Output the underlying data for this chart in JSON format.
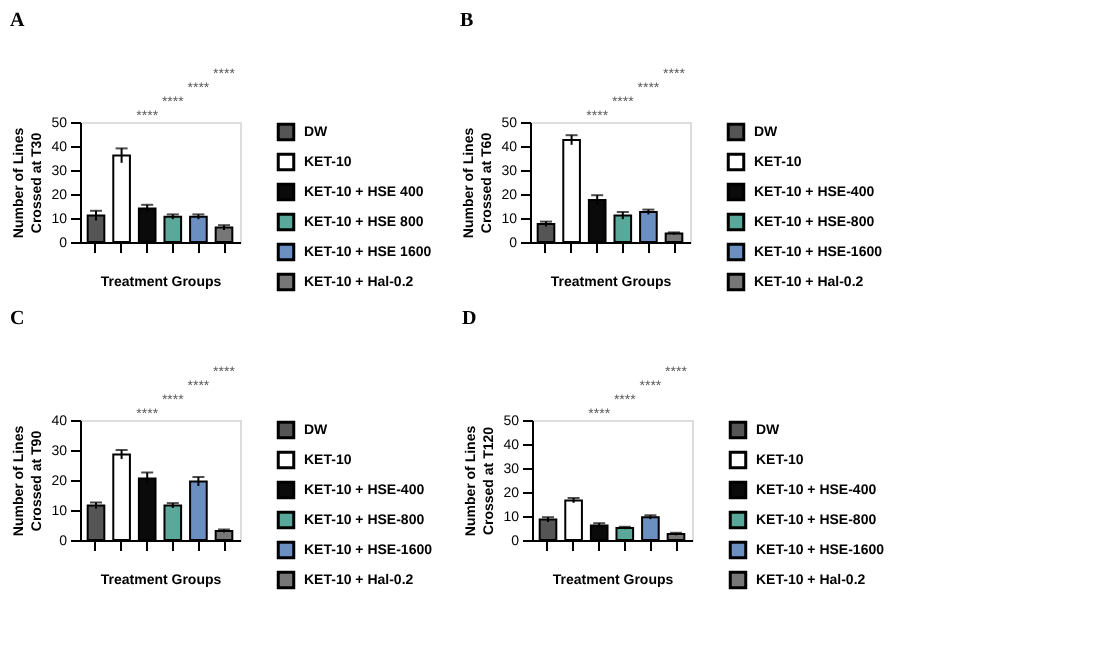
{
  "chart_data": [
    {
      "type": "bar",
      "title": "A",
      "xlabel": "Treatment Groups",
      "ylabel": "Number of Lines\nCrossed at T30",
      "categories": [
        null,
        null,
        null,
        null,
        null,
        null
      ],
      "series": [
        {
          "name": "DW",
          "color": "#555555",
          "values": [
            11,
            null,
            null,
            null,
            null,
            null
          ],
          "errors": [
            2,
            null,
            null,
            null,
            null,
            null
          ]
        },
        {
          "name": "KET-10",
          "color": "#ffffff",
          "values": [
            null,
            36,
            null,
            null,
            null,
            null
          ],
          "errors": [
            null,
            3,
            null,
            null,
            null,
            null
          ]
        },
        {
          "name": "KET-10 + HSE 400",
          "color": "#0a0a0a",
          "values": [
            null,
            null,
            14,
            null,
            null,
            null
          ],
          "errors": [
            null,
            null,
            1.5,
            null,
            null,
            null
          ]
        },
        {
          "name": "KET-10 + HSE 800",
          "color": "#5aa89a",
          "values": [
            null,
            null,
            null,
            10.5,
            null,
            null
          ],
          "errors": [
            null,
            null,
            null,
            1,
            null,
            null
          ]
        },
        {
          "name": "KET-10 + HSE 1600",
          "color": "#6a8fc0",
          "values": [
            null,
            null,
            null,
            null,
            10.5,
            null
          ],
          "errors": [
            null,
            null,
            null,
            null,
            1,
            null
          ]
        },
        {
          "name": "KET-10 + Hal-0.2",
          "color": "#777777",
          "values": [
            null,
            null,
            null,
            null,
            null,
            6
          ],
          "errors": [
            null,
            null,
            null,
            null,
            null,
            1
          ]
        }
      ],
      "ylim": [
        0,
        50
      ],
      "yticks": [
        0,
        10,
        20,
        30,
        40,
        50
      ],
      "legend": "right",
      "tick_labels": "y",
      "grid": false,
      "annotations": [
        "****",
        "****",
        "****",
        "****"
      ]
    },
    {
      "type": "bar",
      "title": "B",
      "xlabel": "Treatment Groups",
      "ylabel": "Number of Lines\nCrossed at T60",
      "categories": [
        null,
        null,
        null,
        null,
        null,
        null
      ],
      "series": [
        {
          "name": "DW",
          "color": "#555555",
          "values": [
            7.5,
            null,
            null,
            null,
            null,
            null
          ],
          "errors": [
            1,
            null,
            null,
            null,
            null,
            null
          ]
        },
        {
          "name": "KET-10",
          "color": "#ffffff",
          "values": [
            null,
            42.5,
            null,
            null,
            null,
            null
          ],
          "errors": [
            null,
            2,
            null,
            null,
            null,
            null
          ]
        },
        {
          "name": "KET-10 + HSE-400",
          "color": "#0a0a0a",
          "values": [
            null,
            null,
            17.5,
            null,
            null,
            null
          ],
          "errors": [
            null,
            null,
            2,
            null,
            null,
            null
          ]
        },
        {
          "name": "KET-10 + HSE-800",
          "color": "#5aa89a",
          "values": [
            null,
            null,
            null,
            11,
            null,
            null
          ],
          "errors": [
            null,
            null,
            null,
            1.5,
            null,
            null
          ]
        },
        {
          "name": "KET-10 + HSE-1600",
          "color": "#6a8fc0",
          "values": [
            null,
            null,
            null,
            null,
            12.5,
            null
          ],
          "errors": [
            null,
            null,
            null,
            null,
            1,
            null
          ]
        },
        {
          "name": "KET-10 + Hal-0.2",
          "color": "#777777",
          "values": [
            null,
            null,
            null,
            null,
            null,
            3.5
          ],
          "errors": [
            null,
            null,
            null,
            null,
            null,
            0.5
          ]
        }
      ],
      "ylim": [
        0,
        50
      ],
      "yticks": [
        0,
        10,
        20,
        30,
        40,
        50
      ],
      "legend": "right",
      "tick_labels": "y",
      "grid": false,
      "annotations": [
        "****",
        "****",
        "****",
        "****"
      ]
    },
    {
      "type": "bar",
      "title": "C",
      "xlabel": "Treatment Groups",
      "ylabel": "Number of Lines\nCrossed at T90",
      "categories": [
        null,
        null,
        null,
        null,
        null,
        null
      ],
      "series": [
        {
          "name": "DW",
          "color": "#555555",
          "values": [
            11.5,
            null,
            null,
            null,
            null,
            null
          ],
          "errors": [
            1,
            null,
            null,
            null,
            null,
            null
          ]
        },
        {
          "name": "KET-10",
          "color": "#ffffff",
          "values": [
            null,
            28.5,
            null,
            null,
            null,
            null
          ],
          "errors": [
            null,
            1.5,
            null,
            null,
            null,
            null
          ]
        },
        {
          "name": "KET-10 + HSE-400",
          "color": "#0a0a0a",
          "values": [
            null,
            null,
            20.5,
            null,
            null,
            null
          ],
          "errors": [
            null,
            null,
            2,
            null,
            null,
            null
          ]
        },
        {
          "name": "KET-10 + HSE-800",
          "color": "#5aa89a",
          "values": [
            null,
            null,
            null,
            11.5,
            null,
            null
          ],
          "errors": [
            null,
            null,
            null,
            0.8,
            null,
            null
          ]
        },
        {
          "name": "KET-10 + HSE-1600",
          "color": "#6a8fc0",
          "values": [
            null,
            null,
            null,
            null,
            19.5,
            null
          ],
          "errors": [
            null,
            null,
            null,
            null,
            1.5,
            null
          ]
        },
        {
          "name": "KET-10 + Hal-0.2",
          "color": "#777777",
          "values": [
            null,
            null,
            null,
            null,
            null,
            3
          ],
          "errors": [
            null,
            null,
            null,
            null,
            null,
            0.5
          ]
        }
      ],
      "ylim": [
        0,
        40
      ],
      "yticks": [
        0,
        10,
        20,
        30,
        40
      ],
      "legend": "right",
      "tick_labels": "y",
      "grid": false,
      "annotations": [
        "****",
        "****",
        "****",
        "****"
      ]
    },
    {
      "type": "bar",
      "title": "D",
      "xlabel": "Treatment Groups",
      "ylabel": "Number of Lines\nCrossed at T120",
      "categories": [
        null,
        null,
        null,
        null,
        null,
        null
      ],
      "series": [
        {
          "name": "DW",
          "color": "#555555",
          "values": [
            8.5,
            null,
            null,
            null,
            null,
            null
          ],
          "errors": [
            1,
            null,
            null,
            null,
            null,
            null
          ]
        },
        {
          "name": "KET-10",
          "color": "#ffffff",
          "values": [
            null,
            16.5,
            null,
            null,
            null,
            null
          ],
          "errors": [
            null,
            1,
            null,
            null,
            null,
            null
          ]
        },
        {
          "name": "KET-10 + HSE-400",
          "color": "#0a0a0a",
          "values": [
            null,
            null,
            6,
            null,
            null,
            null
          ],
          "errors": [
            null,
            null,
            1,
            null,
            null,
            null
          ]
        },
        {
          "name": "KET-10 + HSE-800",
          "color": "#5aa89a",
          "values": [
            null,
            null,
            null,
            5,
            null,
            null
          ],
          "errors": [
            null,
            null,
            null,
            0.5,
            null,
            null
          ]
        },
        {
          "name": "KET-10 + HSE-1600",
          "color": "#6a8fc0",
          "values": [
            null,
            null,
            null,
            null,
            9.5,
            null
          ],
          "errors": [
            null,
            null,
            null,
            null,
            0.8,
            null
          ]
        },
        {
          "name": "KET-10 + Hal-0.2",
          "color": "#777777",
          "values": [
            null,
            null,
            null,
            null,
            null,
            2.5
          ],
          "errors": [
            null,
            null,
            null,
            null,
            null,
            0.5
          ]
        }
      ],
      "ylim": [
        0,
        50
      ],
      "yticks": [
        0,
        10,
        20,
        30,
        40,
        50
      ],
      "legend": "right",
      "tick_labels": "y",
      "grid": false,
      "annotations": [
        "****",
        "****",
        "****",
        "****"
      ]
    }
  ]
}
